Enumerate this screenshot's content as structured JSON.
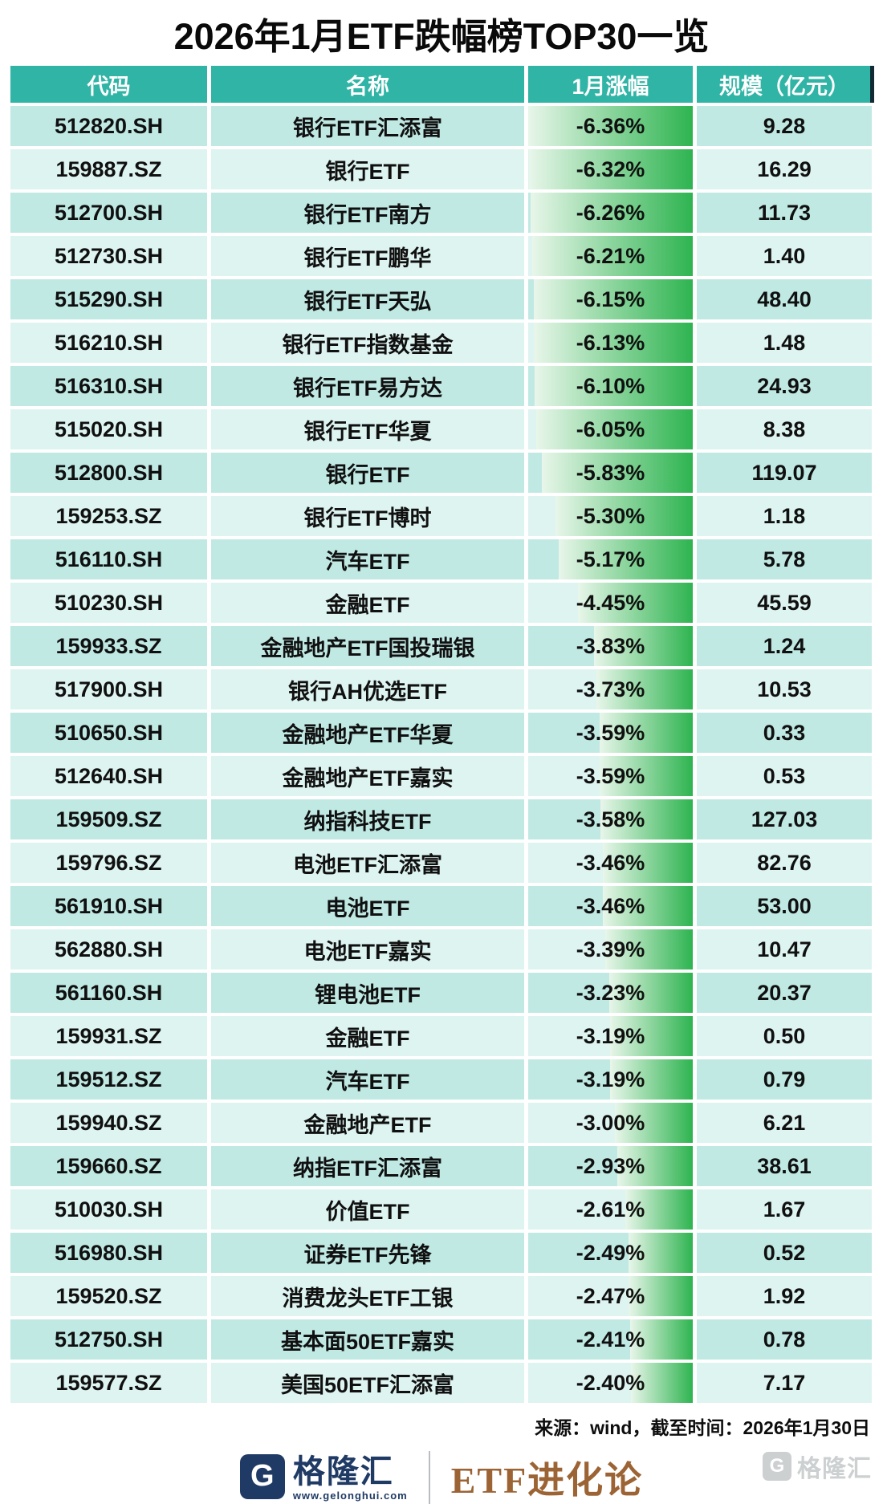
{
  "title": "2026年1月ETF跌幅榜TOP30一览",
  "chart_data": {
    "type": "table",
    "title": "2026年1月ETF跌幅榜TOP30一览",
    "columns": [
      "代码",
      "名称",
      "1月涨幅",
      "规模（亿元）"
    ],
    "bar": {
      "represents": "1月涨幅跌幅幅度（右对齐绿色渐变数据条）",
      "max_abs_pct": 6.36
    },
    "rows": [
      {
        "code": "512820.SH",
        "name": "银行ETF汇添富",
        "change_pct": -6.36,
        "change_label": "-6.36%",
        "size_yi_yuan": 9.28,
        "size_label": "9.28"
      },
      {
        "code": "159887.SZ",
        "name": "银行ETF",
        "change_pct": -6.32,
        "change_label": "-6.32%",
        "size_yi_yuan": 16.29,
        "size_label": "16.29"
      },
      {
        "code": "512700.SH",
        "name": "银行ETF南方",
        "change_pct": -6.26,
        "change_label": "-6.26%",
        "size_yi_yuan": 11.73,
        "size_label": "11.73"
      },
      {
        "code": "512730.SH",
        "name": "银行ETF鹏华",
        "change_pct": -6.21,
        "change_label": "-6.21%",
        "size_yi_yuan": 1.4,
        "size_label": "1.40"
      },
      {
        "code": "515290.SH",
        "name": "银行ETF天弘",
        "change_pct": -6.15,
        "change_label": "-6.15%",
        "size_yi_yuan": 48.4,
        "size_label": "48.40"
      },
      {
        "code": "516210.SH",
        "name": "银行ETF指数基金",
        "change_pct": -6.13,
        "change_label": "-6.13%",
        "size_yi_yuan": 1.48,
        "size_label": "1.48"
      },
      {
        "code": "516310.SH",
        "name": "银行ETF易方达",
        "change_pct": -6.1,
        "change_label": "-6.10%",
        "size_yi_yuan": 24.93,
        "size_label": "24.93"
      },
      {
        "code": "515020.SH",
        "name": "银行ETF华夏",
        "change_pct": -6.05,
        "change_label": "-6.05%",
        "size_yi_yuan": 8.38,
        "size_label": "8.38"
      },
      {
        "code": "512800.SH",
        "name": "银行ETF",
        "change_pct": -5.83,
        "change_label": "-5.83%",
        "size_yi_yuan": 119.07,
        "size_label": "119.07"
      },
      {
        "code": "159253.SZ",
        "name": "银行ETF博时",
        "change_pct": -5.3,
        "change_label": "-5.30%",
        "size_yi_yuan": 1.18,
        "size_label": "1.18"
      },
      {
        "code": "516110.SH",
        "name": "汽车ETF",
        "change_pct": -5.17,
        "change_label": "-5.17%",
        "size_yi_yuan": 5.78,
        "size_label": "5.78"
      },
      {
        "code": "510230.SH",
        "name": "金融ETF",
        "change_pct": -4.45,
        "change_label": "-4.45%",
        "size_yi_yuan": 45.59,
        "size_label": "45.59"
      },
      {
        "code": "159933.SZ",
        "name": "金融地产ETF国投瑞银",
        "change_pct": -3.83,
        "change_label": "-3.83%",
        "size_yi_yuan": 1.24,
        "size_label": "1.24"
      },
      {
        "code": "517900.SH",
        "name": "银行AH优选ETF",
        "change_pct": -3.73,
        "change_label": "-3.73%",
        "size_yi_yuan": 10.53,
        "size_label": "10.53"
      },
      {
        "code": "510650.SH",
        "name": "金融地产ETF华夏",
        "change_pct": -3.59,
        "change_label": "-3.59%",
        "size_yi_yuan": 0.33,
        "size_label": "0.33"
      },
      {
        "code": "512640.SH",
        "name": "金融地产ETF嘉实",
        "change_pct": -3.59,
        "change_label": "-3.59%",
        "size_yi_yuan": 0.53,
        "size_label": "0.53"
      },
      {
        "code": "159509.SZ",
        "name": "纳指科技ETF",
        "change_pct": -3.58,
        "change_label": "-3.58%",
        "size_yi_yuan": 127.03,
        "size_label": "127.03"
      },
      {
        "code": "159796.SZ",
        "name": "电池ETF汇添富",
        "change_pct": -3.46,
        "change_label": "-3.46%",
        "size_yi_yuan": 82.76,
        "size_label": "82.76"
      },
      {
        "code": "561910.SH",
        "name": "电池ETF",
        "change_pct": -3.46,
        "change_label": "-3.46%",
        "size_yi_yuan": 53.0,
        "size_label": "53.00"
      },
      {
        "code": "562880.SH",
        "name": "电池ETF嘉实",
        "change_pct": -3.39,
        "change_label": "-3.39%",
        "size_yi_yuan": 10.47,
        "size_label": "10.47"
      },
      {
        "code": "561160.SH",
        "name": "锂电池ETF",
        "change_pct": -3.23,
        "change_label": "-3.23%",
        "size_yi_yuan": 20.37,
        "size_label": "20.37"
      },
      {
        "code": "159931.SZ",
        "name": "金融ETF",
        "change_pct": -3.19,
        "change_label": "-3.19%",
        "size_yi_yuan": 0.5,
        "size_label": "0.50"
      },
      {
        "code": "159512.SZ",
        "name": "汽车ETF",
        "change_pct": -3.19,
        "change_label": "-3.19%",
        "size_yi_yuan": 0.79,
        "size_label": "0.79"
      },
      {
        "code": "159940.SZ",
        "name": "金融地产ETF",
        "change_pct": -3.0,
        "change_label": "-3.00%",
        "size_yi_yuan": 6.21,
        "size_label": "6.21"
      },
      {
        "code": "159660.SZ",
        "name": "纳指ETF汇添富",
        "change_pct": -2.93,
        "change_label": "-2.93%",
        "size_yi_yuan": 38.61,
        "size_label": "38.61"
      },
      {
        "code": "510030.SH",
        "name": "价值ETF",
        "change_pct": -2.61,
        "change_label": "-2.61%",
        "size_yi_yuan": 1.67,
        "size_label": "1.67"
      },
      {
        "code": "516980.SH",
        "name": "证券ETF先锋",
        "change_pct": -2.49,
        "change_label": "-2.49%",
        "size_yi_yuan": 0.52,
        "size_label": "0.52"
      },
      {
        "code": "159520.SZ",
        "name": "消费龙头ETF工银",
        "change_pct": -2.47,
        "change_label": "-2.47%",
        "size_yi_yuan": 1.92,
        "size_label": "1.92"
      },
      {
        "code": "512750.SH",
        "name": "基本面50ETF嘉实",
        "change_pct": -2.41,
        "change_label": "-2.41%",
        "size_yi_yuan": 0.78,
        "size_label": "0.78"
      },
      {
        "code": "159577.SZ",
        "name": "美国50ETF汇添富",
        "change_pct": -2.4,
        "change_label": "-2.40%",
        "size_yi_yuan": 7.17,
        "size_label": "7.17"
      }
    ]
  },
  "footer": {
    "source": "来源：wind，截至时间：2026年1月30日",
    "brand": {
      "g_letter": "G",
      "name": "格隆汇",
      "url": "www.gelonghui.com",
      "column_name": "ETF进化论"
    },
    "watermark": {
      "g_letter": "G",
      "text": "格隆汇"
    }
  },
  "colors": {
    "header-teal": "#2fb4a5",
    "row-dark": "#c0e9e4",
    "row-light": "#def4f1",
    "bar-from": "#e8f6ea",
    "bar-to": "#2eb450",
    "navy": "#1f3a64",
    "bronze": "#9c6434"
  }
}
